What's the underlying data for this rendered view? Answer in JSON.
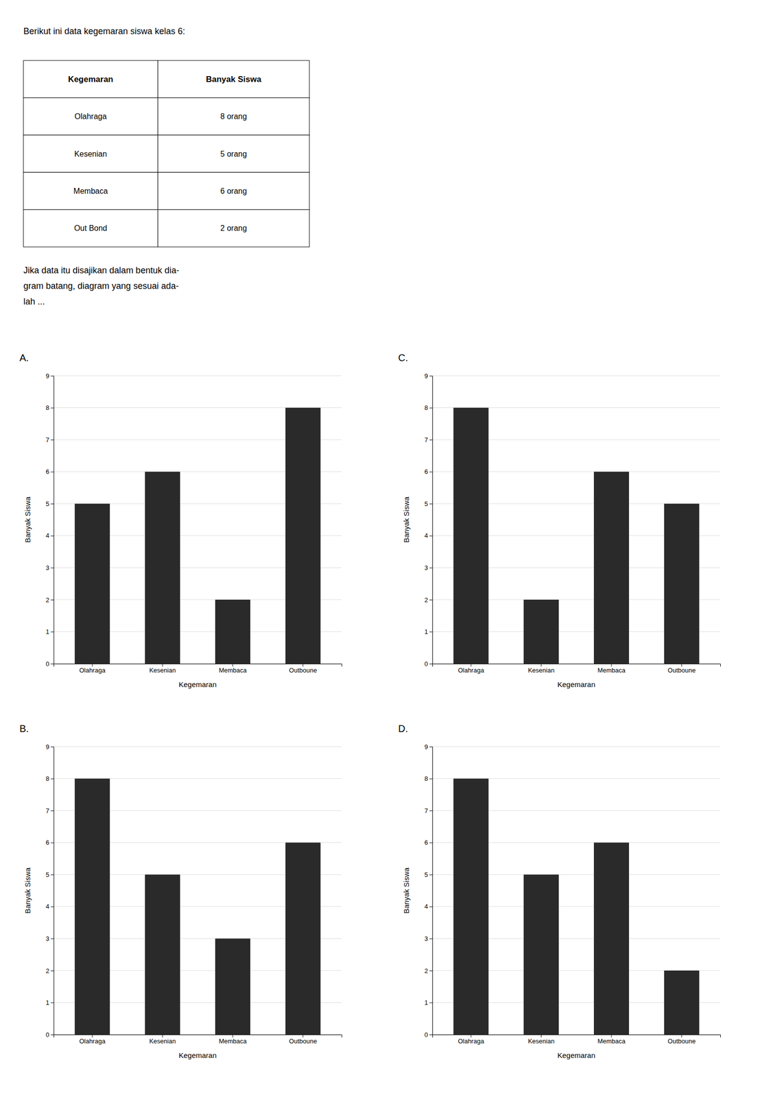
{
  "title": "Berikut ini data kegemaran siswa kelas 6:",
  "table_headers": [
    "Kegemaran",
    "Banyak Siswa"
  ],
  "table_rows": [
    [
      "Olahraga",
      "8 orang"
    ],
    [
      "Kesenian",
      "5 orang"
    ],
    [
      "Membaca",
      "6 orang"
    ],
    [
      "Out Bond",
      "2 orang"
    ]
  ],
  "question_lines": [
    "Jika data itu disajikan dalam bentuk dia-",
    "gram batang, diagram yang sesuai ada-",
    "lah ..."
  ],
  "chart_data": [
    {
      "type": "bar",
      "title": "A.",
      "categories": [
        "Olahraga",
        "Kesenian",
        "Membaca",
        "Outboune"
      ],
      "values": [
        5,
        6,
        2,
        8
      ],
      "color": "#2a2a2a",
      "xlabel": "Kegemaran",
      "ylabel": "Banyak Siswa",
      "ylim": [
        0,
        9
      ],
      "yticks": [
        0,
        1,
        2,
        3,
        4,
        5,
        6,
        7,
        8,
        9
      ],
      "grid": true
    },
    {
      "type": "bar",
      "title": "B.",
      "categories": [
        "Olahraga",
        "Kesenian",
        "Membaca",
        "Outboune"
      ],
      "values": [
        8,
        5,
        3,
        6
      ],
      "color": "#2a2a2a",
      "xlabel": "Kegemaran",
      "ylabel": "Banyak Siswa",
      "ylim": [
        0,
        9
      ],
      "yticks": [
        0,
        1,
        2,
        3,
        4,
        5,
        6,
        7,
        8,
        9
      ],
      "grid": true
    },
    {
      "type": "bar",
      "title": "C.",
      "categories": [
        "Olahraga",
        "Kesenian",
        "Membaca",
        "Outboune"
      ],
      "values": [
        8,
        2,
        6,
        5
      ],
      "color": "#2a2a2a",
      "xlabel": "Kegemaran",
      "ylabel": "Banyak Siswa",
      "ylim": [
        0,
        9
      ],
      "yticks": [
        0,
        1,
        2,
        3,
        4,
        5,
        6,
        7,
        8,
        9
      ],
      "grid": true
    },
    {
      "type": "bar",
      "title": "D.",
      "categories": [
        "Olahraga",
        "Kesenian",
        "Membaca",
        "Outboune"
      ],
      "values": [
        8,
        5,
        6,
        2
      ],
      "color": "#2a2a2a",
      "xlabel": "Kegemaran",
      "ylabel": "Banyak Siswa",
      "ylim": [
        0,
        9
      ],
      "yticks": [
        0,
        1,
        2,
        3,
        4,
        5,
        6,
        7,
        8,
        9
      ],
      "grid": true
    }
  ]
}
